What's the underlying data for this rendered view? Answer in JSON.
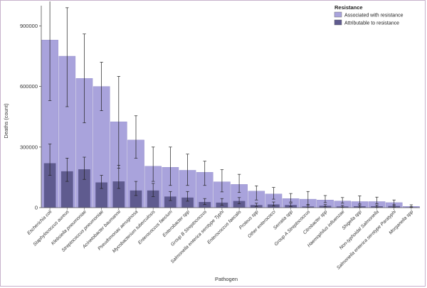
{
  "chart_data": {
    "type": "bar",
    "xlabel": "Pathogen",
    "ylabel": "Deaths (count)",
    "ylim": [
      0,
      1000000
    ],
    "yticks": [
      0,
      300000,
      600000,
      900000
    ],
    "ytick_labels": [
      "0",
      "300000",
      "600000",
      "900000"
    ],
    "grid": false,
    "legend_placement": "top-right",
    "legend_title": "Resistance",
    "categories": [
      "Escherichia coli",
      "Staphylococcus aureus",
      "Klebsiella pneumoniae",
      "Streptococcus pneumoniae",
      "Acinetobacter baumannii",
      "Pseudomonas aeruginosa",
      "Mycobacterium tuberculosis",
      "Enterococcus faecium",
      "Enterobacter spp",
      "Group B Streptococcus",
      "Salmonella enterica serotype Typhi",
      "Enterococcus faecalis",
      "Proteus spp",
      "Other enterococci",
      "Serratia spp",
      "Group A Streptococcus",
      "Citrobacter spp",
      "Haemophilus influenzae",
      "Shigella spp",
      "Non-typhoidal Salmonella",
      "Salmonella enterica serotype Paratyphi",
      "Morganella spp"
    ],
    "series": [
      {
        "name": "Associated with resistance",
        "color": "#a9a3dc",
        "values": [
          830000,
          750000,
          640000,
          600000,
          425000,
          335000,
          205000,
          200000,
          185000,
          175000,
          128000,
          115000,
          82000,
          68000,
          45000,
          42000,
          38000,
          33000,
          30000,
          30000,
          25000,
          6000
        ],
        "err_low": [
          530000,
          500000,
          420000,
          480000,
          195000,
          245000,
          130000,
          110000,
          110000,
          110000,
          78000,
          75000,
          38000,
          42000,
          28000,
          15000,
          25000,
          22000,
          18000,
          20000,
          13000,
          2000
        ],
        "err_high": [
          1110000,
          990000,
          860000,
          720000,
          650000,
          455000,
          300000,
          300000,
          265000,
          230000,
          188000,
          165000,
          108000,
          100000,
          70000,
          80000,
          60000,
          50000,
          58000,
          52000,
          38000,
          14000
        ]
      },
      {
        "name": "Attributable to resistance",
        "color": "#5f5b8f",
        "values": [
          220000,
          180000,
          190000,
          125000,
          130000,
          85000,
          85000,
          55000,
          50000,
          28000,
          25000,
          33000,
          13000,
          16000,
          13000,
          6000,
          9000,
          6000,
          7000,
          7000,
          8000,
          2000
        ],
        "err_low": [
          160000,
          130000,
          140000,
          95000,
          95000,
          60000,
          55000,
          35000,
          32000,
          15000,
          12000,
          20000,
          6000,
          8000,
          6000,
          2000,
          4000,
          2000,
          3000,
          3000,
          3000,
          500
        ],
        "err_high": [
          315000,
          245000,
          250000,
          160000,
          210000,
          130000,
          120000,
          80000,
          80000,
          45000,
          45000,
          50000,
          22000,
          28000,
          22000,
          12000,
          15000,
          11000,
          13000,
          13000,
          14000,
          4000
        ]
      }
    ]
  }
}
